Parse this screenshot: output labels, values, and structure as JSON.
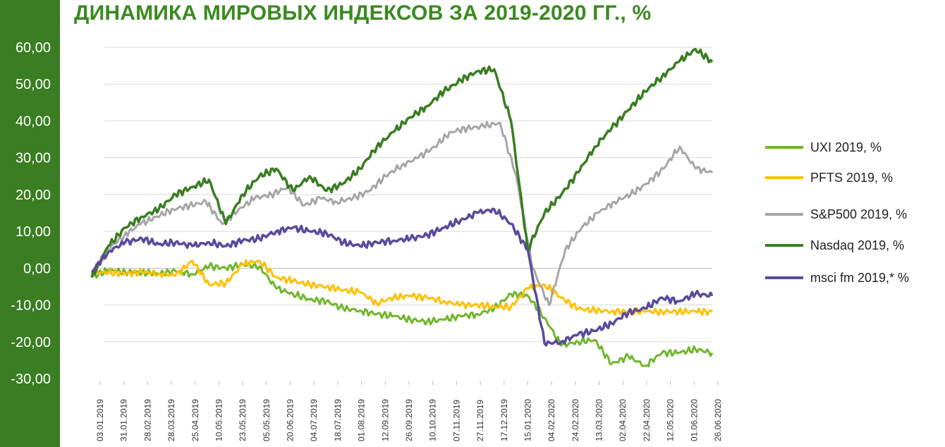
{
  "title": "ДИНАМИКА МИРОВЫХ ИНДЕКСОВ ЗА 2019-2020 ГГ., %",
  "colors": {
    "left_band": "#3a7d22",
    "title": "#3a8a1f",
    "grid": "#d9d9d9"
  },
  "chart_data": {
    "type": "line",
    "title": "ДИНАМИКА МИРОВЫХ ИНДЕКСОВ ЗА 2019-2020 ГГ., %",
    "xlabel": "",
    "ylabel": "",
    "ylim": [
      -30,
      60
    ],
    "ytick_labels": [
      "60,00",
      "50,00",
      "40,00",
      "30,00",
      "20,00",
      "10,00",
      "0,00",
      "-10,00",
      "-20,00",
      "-30,00"
    ],
    "x_tick_labels": [
      "03.01.2019",
      "31.01.2019",
      "28.02.2019",
      "28.03.2019",
      "25.04.2019",
      "10.05.2019",
      "23.05.2019",
      "05.05.2019",
      "20.06.2019",
      "04.07.2019",
      "18.07.2019",
      "01.08.2019",
      "12.09.2019",
      "26.09.2019",
      "10.10.2019",
      "07.11.2019",
      "27.11.2019",
      "17.12.2019",
      "15.01.2020",
      "04.02.2020",
      "24.02.2020",
      "13.03.2020",
      "02.04.2020",
      "22.04.2020",
      "12.05.2020",
      "01.06.2020",
      "26.06.2020"
    ],
    "grid": true,
    "legend_position": "right",
    "series": [
      {
        "name": "UXI 2019, %",
        "color": "#70b62c",
        "width": 3,
        "values": [
          -2.5,
          -0.5,
          -1.0,
          -1.2,
          -1.5,
          -0.8,
          -1.6,
          0.5,
          0.0,
          1.0,
          0.5,
          -5.5,
          -7.0,
          -8.5,
          -9.0,
          -11.0,
          -11.5,
          -12.5,
          -13.0,
          -14.0,
          -14.5,
          -14.0,
          -13.0,
          -12.5,
          -11.0,
          -7.0,
          -7.5,
          -13.5,
          -21.0,
          -20.0,
          -19.5,
          -26.0,
          -24.0,
          -26.5,
          -23.0,
          -23.0,
          -22.0,
          -23.0
        ]
      },
      {
        "name": "PFTS 2019, %",
        "color": "#ffc000",
        "width": 3,
        "values": [
          -1.0,
          -1.2,
          -1.5,
          -1.0,
          -1.5,
          -2.0,
          2.0,
          -4.5,
          -4.0,
          1.0,
          2.0,
          -2.5,
          -3.5,
          -4.5,
          -5.0,
          -6.0,
          -6.5,
          -9.5,
          -8.0,
          -7.5,
          -8.0,
          -9.0,
          -10.0,
          -10.0,
          -10.5,
          -10.5,
          -5.5,
          -4.5,
          -8.0,
          -11.0,
          -11.5,
          -11.7,
          -11.8,
          -11.8,
          -11.8,
          -11.8,
          -11.8,
          -11.9
        ]
      },
      {
        "name": "S&P500 2019, %",
        "color": "#a6a6a6",
        "width": 3,
        "values": [
          -1.5,
          5.0,
          9.0,
          12.0,
          14.0,
          16.0,
          17.0,
          18.0,
          12.0,
          16.0,
          19.0,
          20.0,
          22.0,
          17.0,
          19.0,
          18.0,
          19.0,
          21.0,
          25.0,
          28.0,
          30.0,
          33.0,
          37.0,
          38.0,
          38.5,
          39.5,
          25.0,
          0.0,
          -10.0,
          5.0,
          11.0,
          15.0,
          18.0,
          20.0,
          23.0,
          27.0,
          33.0,
          27.0,
          26.0
        ]
      },
      {
        "name": "Nasdaq 2019, %",
        "color": "#3a7d22",
        "width": 3.5,
        "values": [
          -2.5,
          6.0,
          11.0,
          14.0,
          16.0,
          20.0,
          22.0,
          24.0,
          12.0,
          20.0,
          25.0,
          27.0,
          21.0,
          25.0,
          21.0,
          23.0,
          27.0,
          33.0,
          37.0,
          41.0,
          44.0,
          48.0,
          51.0,
          53.5,
          54.0,
          40.0,
          5.0,
          15.0,
          20.0,
          26.0,
          33.0,
          38.0,
          43.0,
          48.0,
          52.0,
          56.0,
          59.5,
          56.0
        ]
      },
      {
        "name": "msci fm 2019,* %",
        "color": "#5b4a9b",
        "width": 3.5,
        "values": [
          -1.0,
          4.5,
          7.0,
          8.0,
          6.5,
          7.0,
          6.0,
          7.0,
          6.0,
          7.5,
          8.0,
          10.0,
          11.0,
          10.0,
          9.5,
          7.0,
          6.0,
          7.0,
          7.5,
          8.0,
          9.0,
          11.0,
          13.0,
          15.0,
          16.0,
          12.0,
          5.0,
          -20.5,
          -20.0,
          -18.0,
          -17.0,
          -15.0,
          -12.0,
          -11.0,
          -8.0,
          -9.0,
          -7.0,
          -7.5
        ]
      }
    ]
  }
}
